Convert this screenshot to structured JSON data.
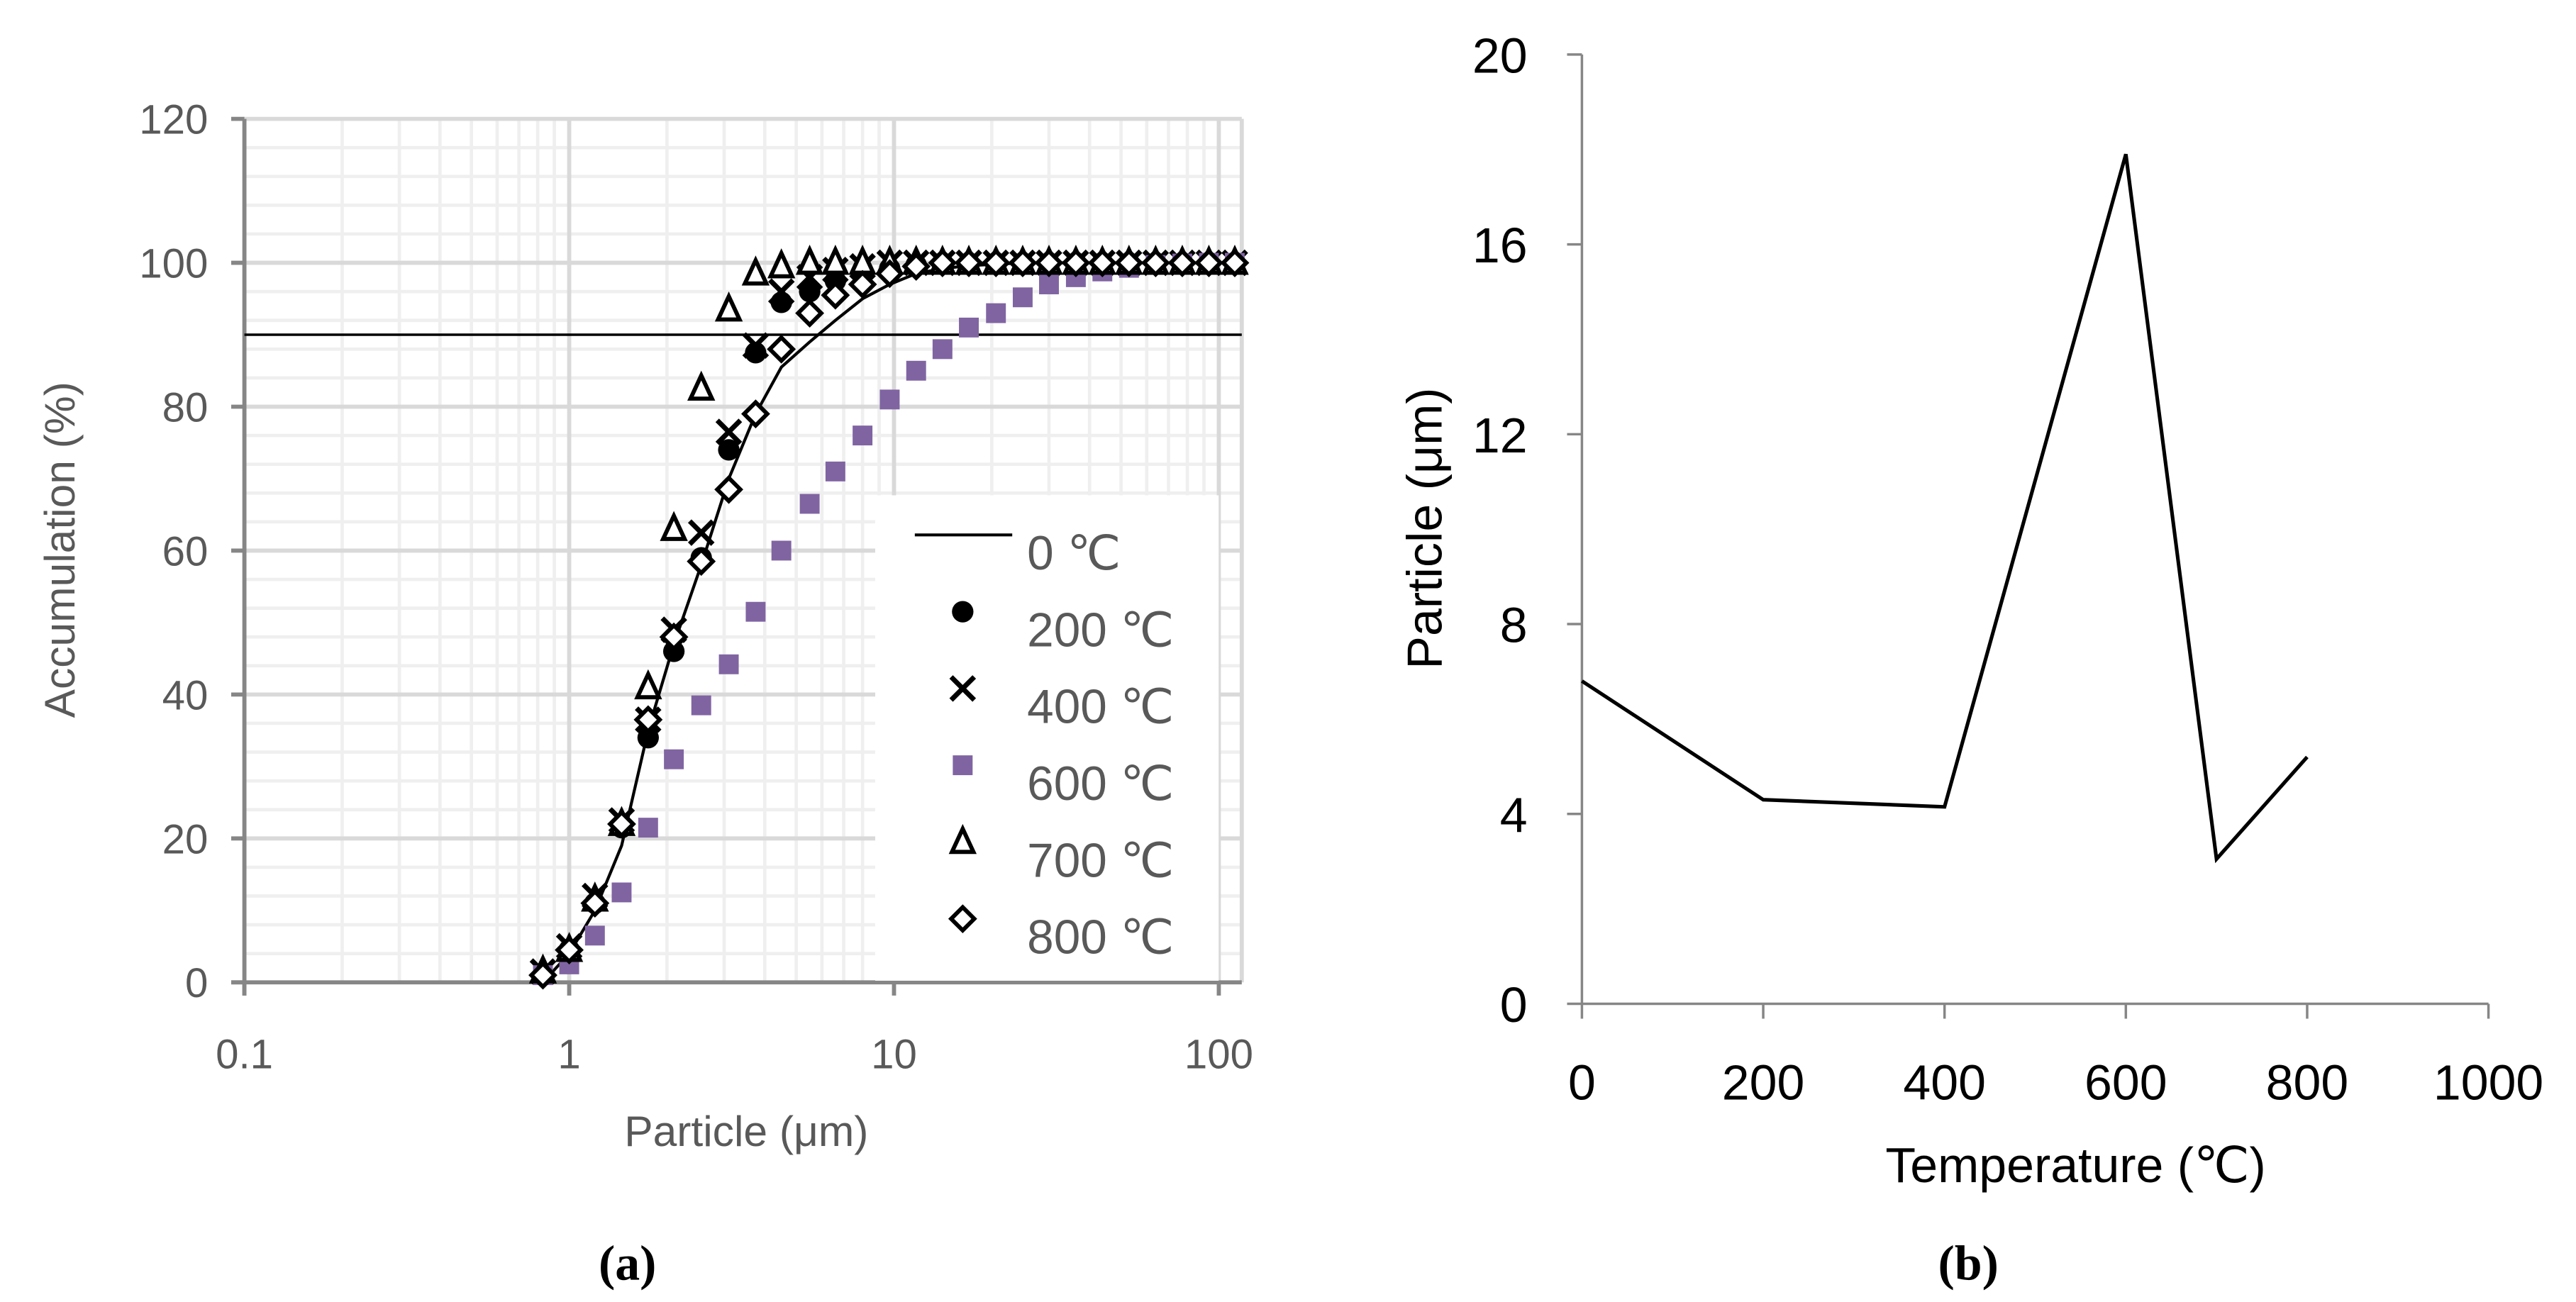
{
  "chart_data": [
    {
      "type": "scatter",
      "panel_label": "(a)",
      "title": "",
      "xlabel": "Particle (μm)",
      "ylabel": "Accumulation (%)",
      "xscale": "log",
      "xlim": [
        0.1,
        118
      ],
      "ylim": [
        0,
        120
      ],
      "x_ticks": [
        "0.1",
        "1",
        "10",
        "100"
      ],
      "y_ticks": [
        "0",
        "20",
        "40",
        "60",
        "80",
        "100",
        "120"
      ],
      "grid": true,
      "legend_position": "bottom-right",
      "reference_line_y": 90,
      "x": [
        0.83,
        1.0,
        1.2,
        1.45,
        1.75,
        2.1,
        2.55,
        3.1,
        3.75,
        4.5,
        5.5,
        6.6,
        8.0,
        9.7,
        11.7,
        14.1,
        17.0,
        20.6,
        24.9,
        30.0,
        36.3,
        43.8,
        52.9,
        63.9,
        77.2,
        93.2,
        112
      ],
      "series": [
        {
          "name": "0 ℃",
          "marker": "line",
          "color": "#000000",
          "values": [
            0,
            4,
            10,
            19,
            35,
            47,
            58,
            70,
            79,
            85.5,
            89,
            92,
            95,
            97,
            98.5,
            99.2,
            99.6,
            99.8,
            100,
            100,
            100,
            100,
            100,
            100,
            100,
            100,
            100
          ]
        },
        {
          "name": "200 ℃",
          "marker": "circle",
          "color": "#000000",
          "values": [
            1,
            4.5,
            11,
            21.5,
            34,
            46,
            59,
            74,
            87.5,
            94.5,
            96,
            97.5,
            98.5,
            99.2,
            99.7,
            100,
            100,
            100,
            100,
            100,
            100,
            100,
            100,
            100,
            100,
            100,
            100
          ]
        },
        {
          "name": "400 ℃",
          "marker": "x",
          "color": "#000000",
          "values": [
            1.5,
            5,
            12,
            22.5,
            36.5,
            49,
            62.5,
            76.5,
            88.5,
            96,
            98,
            99,
            99.5,
            100,
            100,
            100,
            100,
            100,
            100,
            100,
            100,
            100,
            100,
            100,
            100,
            100,
            100
          ]
        },
        {
          "name": "600 ℃",
          "marker": "square",
          "color": "#8064A2",
          "values": [
            1,
            2.5,
            6.5,
            12.5,
            21.5,
            31,
            38.5,
            44.2,
            51.5,
            60,
            66.5,
            71,
            76,
            81,
            85,
            88,
            91,
            93,
            95.2,
            97,
            98,
            98.8,
            99.3,
            99.7,
            99.9,
            100,
            100
          ]
        },
        {
          "name": "700 ℃",
          "marker": "triangle",
          "color": "#000000",
          "values": [
            1.5,
            4.5,
            11.5,
            22,
            41,
            63,
            82.5,
            93.5,
            98.5,
            99.5,
            100,
            100,
            100,
            100,
            100,
            100,
            100,
            100,
            100,
            100,
            100,
            100,
            100,
            100,
            100,
            100,
            100
          ]
        },
        {
          "name": "800 ℃",
          "marker": "diamond",
          "color": "#000000",
          "values": [
            1,
            4.5,
            11,
            22,
            36.5,
            48,
            58.5,
            68.5,
            79,
            88,
            93,
            95.5,
            97,
            98.5,
            99.5,
            100,
            100,
            100,
            100,
            100,
            100,
            100,
            100,
            100,
            100,
            100,
            100
          ]
        }
      ]
    },
    {
      "type": "line",
      "panel_label": "(b)",
      "title": "",
      "xlabel": "Temperature (℃)",
      "ylabel": "Particle (μm)",
      "xlim": [
        0,
        1000
      ],
      "ylim": [
        0,
        20
      ],
      "x_ticks": [
        "0",
        "200",
        "400",
        "600",
        "800",
        "1000"
      ],
      "y_ticks": [
        "0",
        "4",
        "8",
        "12",
        "16",
        "20"
      ],
      "grid": false,
      "x": [
        0,
        200,
        400,
        600,
        700,
        800
      ],
      "series": [
        {
          "name": "Particle",
          "color": "#000000",
          "values": [
            6.8,
            4.3,
            4.15,
            17.9,
            3.05,
            5.2
          ]
        }
      ]
    }
  ]
}
